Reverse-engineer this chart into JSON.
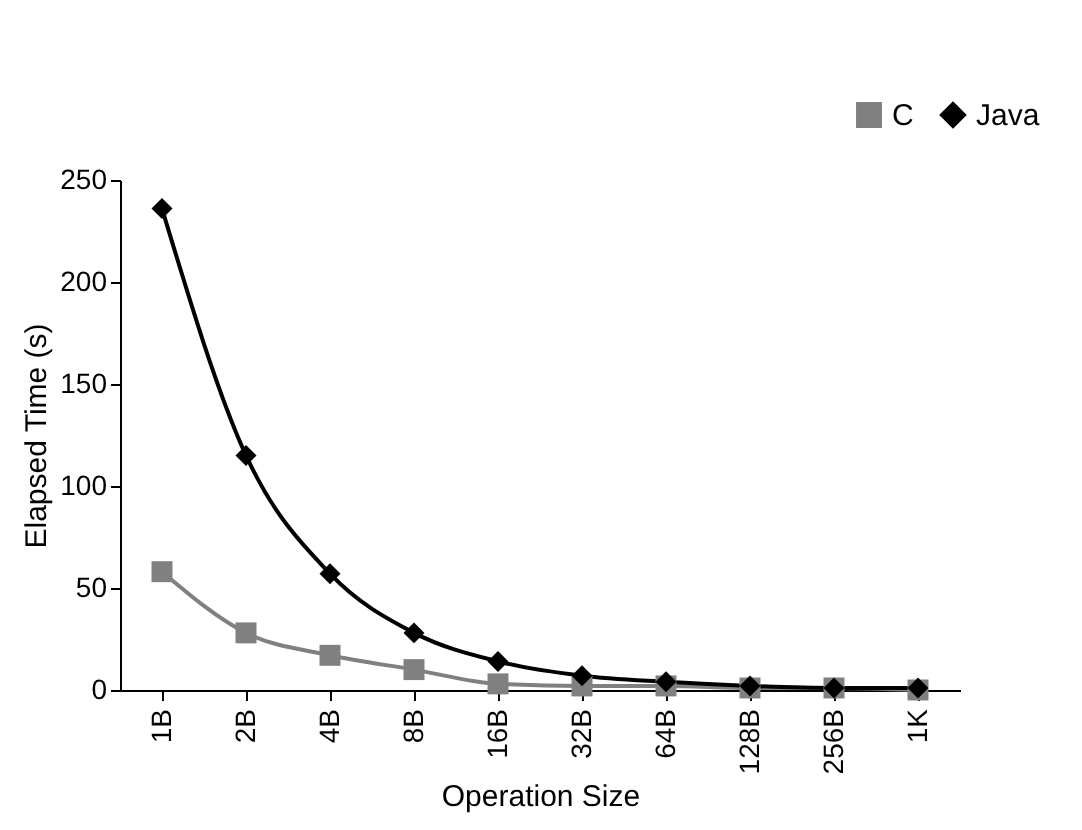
{
  "chart_data": {
    "type": "line",
    "xlabel": "Operation Size",
    "ylabel": "Elapsed Time (s)",
    "categories": [
      "1B",
      "2B",
      "4B",
      "8B",
      "16B",
      "32B",
      "64B",
      "128B",
      "256B",
      "1K"
    ],
    "series": [
      {
        "name": "C",
        "color": "#808080",
        "marker": "square",
        "values": [
          58,
          28,
          17,
          10,
          3,
          2,
          2,
          1,
          1,
          0
        ]
      },
      {
        "name": "Java",
        "color": "#000000",
        "marker": "diamond",
        "values": [
          236,
          115,
          57,
          28,
          14,
          7,
          4,
          2,
          1,
          1
        ]
      }
    ],
    "ylim": [
      0,
      250
    ],
    "yticks": [
      0,
      50,
      100,
      150,
      200,
      250
    ],
    "grid": false,
    "legend": "top right"
  }
}
